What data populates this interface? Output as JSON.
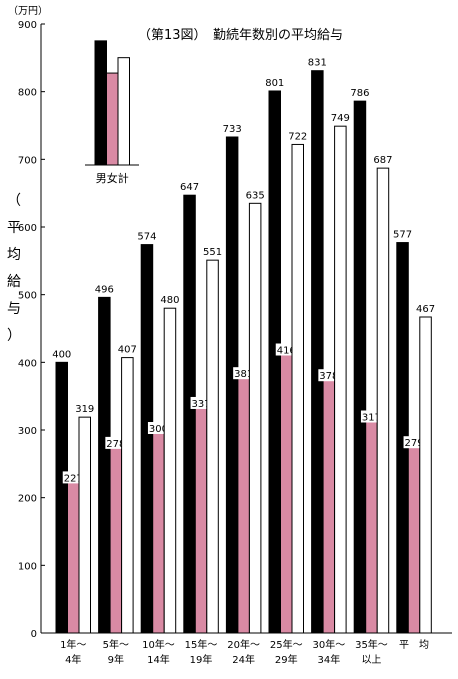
{
  "chart_data": {
    "type": "bar",
    "title": "（第13図）　勤続年数別の平均給与",
    "unit_label": "（万円）",
    "ylabel": [
      "（",
      "平",
      "均",
      "給",
      "与",
      "）"
    ],
    "ylim": [
      0,
      900
    ],
    "yticks": [
      0,
      100,
      200,
      300,
      400,
      500,
      600,
      700,
      800,
      900
    ],
    "grid": false,
    "categories": [
      [
        "1年～",
        "4年"
      ],
      [
        "5年～",
        "9年"
      ],
      [
        "10年～",
        "14年"
      ],
      [
        "15年～",
        "19年"
      ],
      [
        "20年～",
        "24年"
      ],
      [
        "25年～",
        "29年"
      ],
      [
        "30年～",
        "34年"
      ],
      [
        "35年～",
        "以上"
      ],
      [
        "平　均",
        ""
      ]
    ],
    "series": [
      {
        "color": "#000000",
        "values": [
          400,
          496,
          574,
          647,
          733,
          801,
          831,
          786,
          577
        ]
      },
      {
        "color": "#d98aa4",
        "values": [
          227,
          278,
          300,
          337,
          381,
          416,
          378,
          317,
          279
        ]
      },
      {
        "color": "#ffffff",
        "values": [
          319,
          407,
          480,
          551,
          635,
          722,
          749,
          687,
          467
        ]
      }
    ],
    "legend": {
      "label": "男女計",
      "placement": "top-left"
    }
  }
}
